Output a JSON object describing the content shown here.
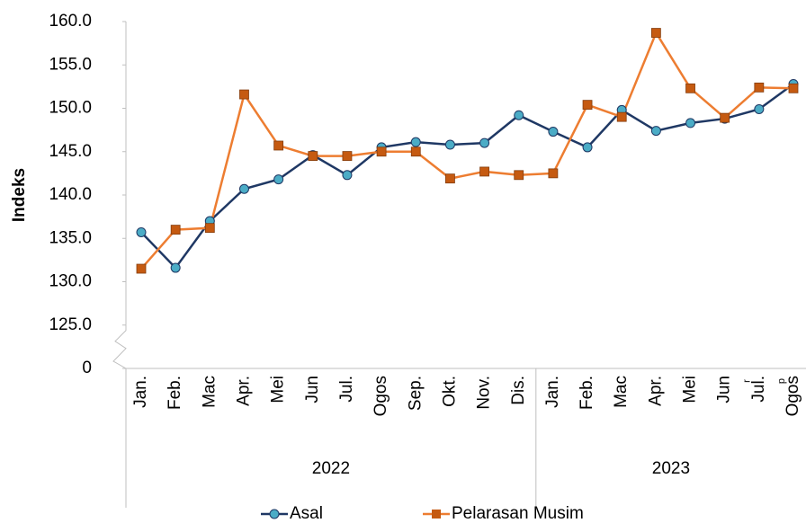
{
  "chart_data": {
    "type": "line",
    "y_label": "Indeks",
    "categories": [
      "Jan.",
      "Feb.",
      "Mac",
      "Apr.",
      "Mei",
      "Jun",
      "Jul.",
      "Ogos",
      "Sep.",
      "Okt.",
      "Nov.",
      "Dis.",
      "Jan.",
      "Feb.",
      "Mac",
      "Apr.",
      "Mei",
      "Jun",
      "Jul.",
      "Ogos"
    ],
    "superscripts": [
      null,
      null,
      null,
      null,
      null,
      null,
      null,
      null,
      null,
      null,
      null,
      null,
      null,
      null,
      null,
      null,
      null,
      null,
      "r",
      "p"
    ],
    "groups": [
      {
        "name": "2022",
        "categories": 12
      },
      {
        "name": "2023",
        "categories": 8
      }
    ],
    "series": [
      {
        "name": "Asal",
        "color": "#1f3864",
        "marker": "circle",
        "marker_color": "#4bacc6",
        "values": [
          135.7,
          131.6,
          137.0,
          140.7,
          141.8,
          144.6,
          142.3,
          145.5,
          146.1,
          145.8,
          146.0,
          149.2,
          147.3,
          145.5,
          149.8,
          147.4,
          148.3,
          148.8,
          149.9,
          152.8
        ]
      },
      {
        "name": "Pelarasan Musim",
        "color": "#ed7d31",
        "marker": "square",
        "marker_color": "#c55a11",
        "values": [
          131.5,
          136.0,
          136.2,
          151.6,
          145.7,
          144.5,
          144.5,
          145.0,
          145.0,
          141.9,
          142.7,
          142.3,
          142.5,
          150.4,
          149.0,
          158.7,
          152.3,
          148.9,
          152.4,
          152.3
        ]
      }
    ],
    "ylim": [
      0,
      160
    ],
    "y_break": [
      0,
      125
    ],
    "yticks": [
      0,
      {
        "value": 125,
        "label": "125.0"
      },
      {
        "value": 130,
        "label": "130.0"
      },
      {
        "value": 135,
        "label": "135.0"
      },
      {
        "value": 140,
        "label": "140.0"
      },
      {
        "value": 145,
        "label": "145.0"
      },
      {
        "value": 150,
        "label": "150.0"
      },
      {
        "value": 155,
        "label": "155.0"
      },
      {
        "value": 160,
        "label": "160.0"
      }
    ],
    "legend": "bottom"
  }
}
